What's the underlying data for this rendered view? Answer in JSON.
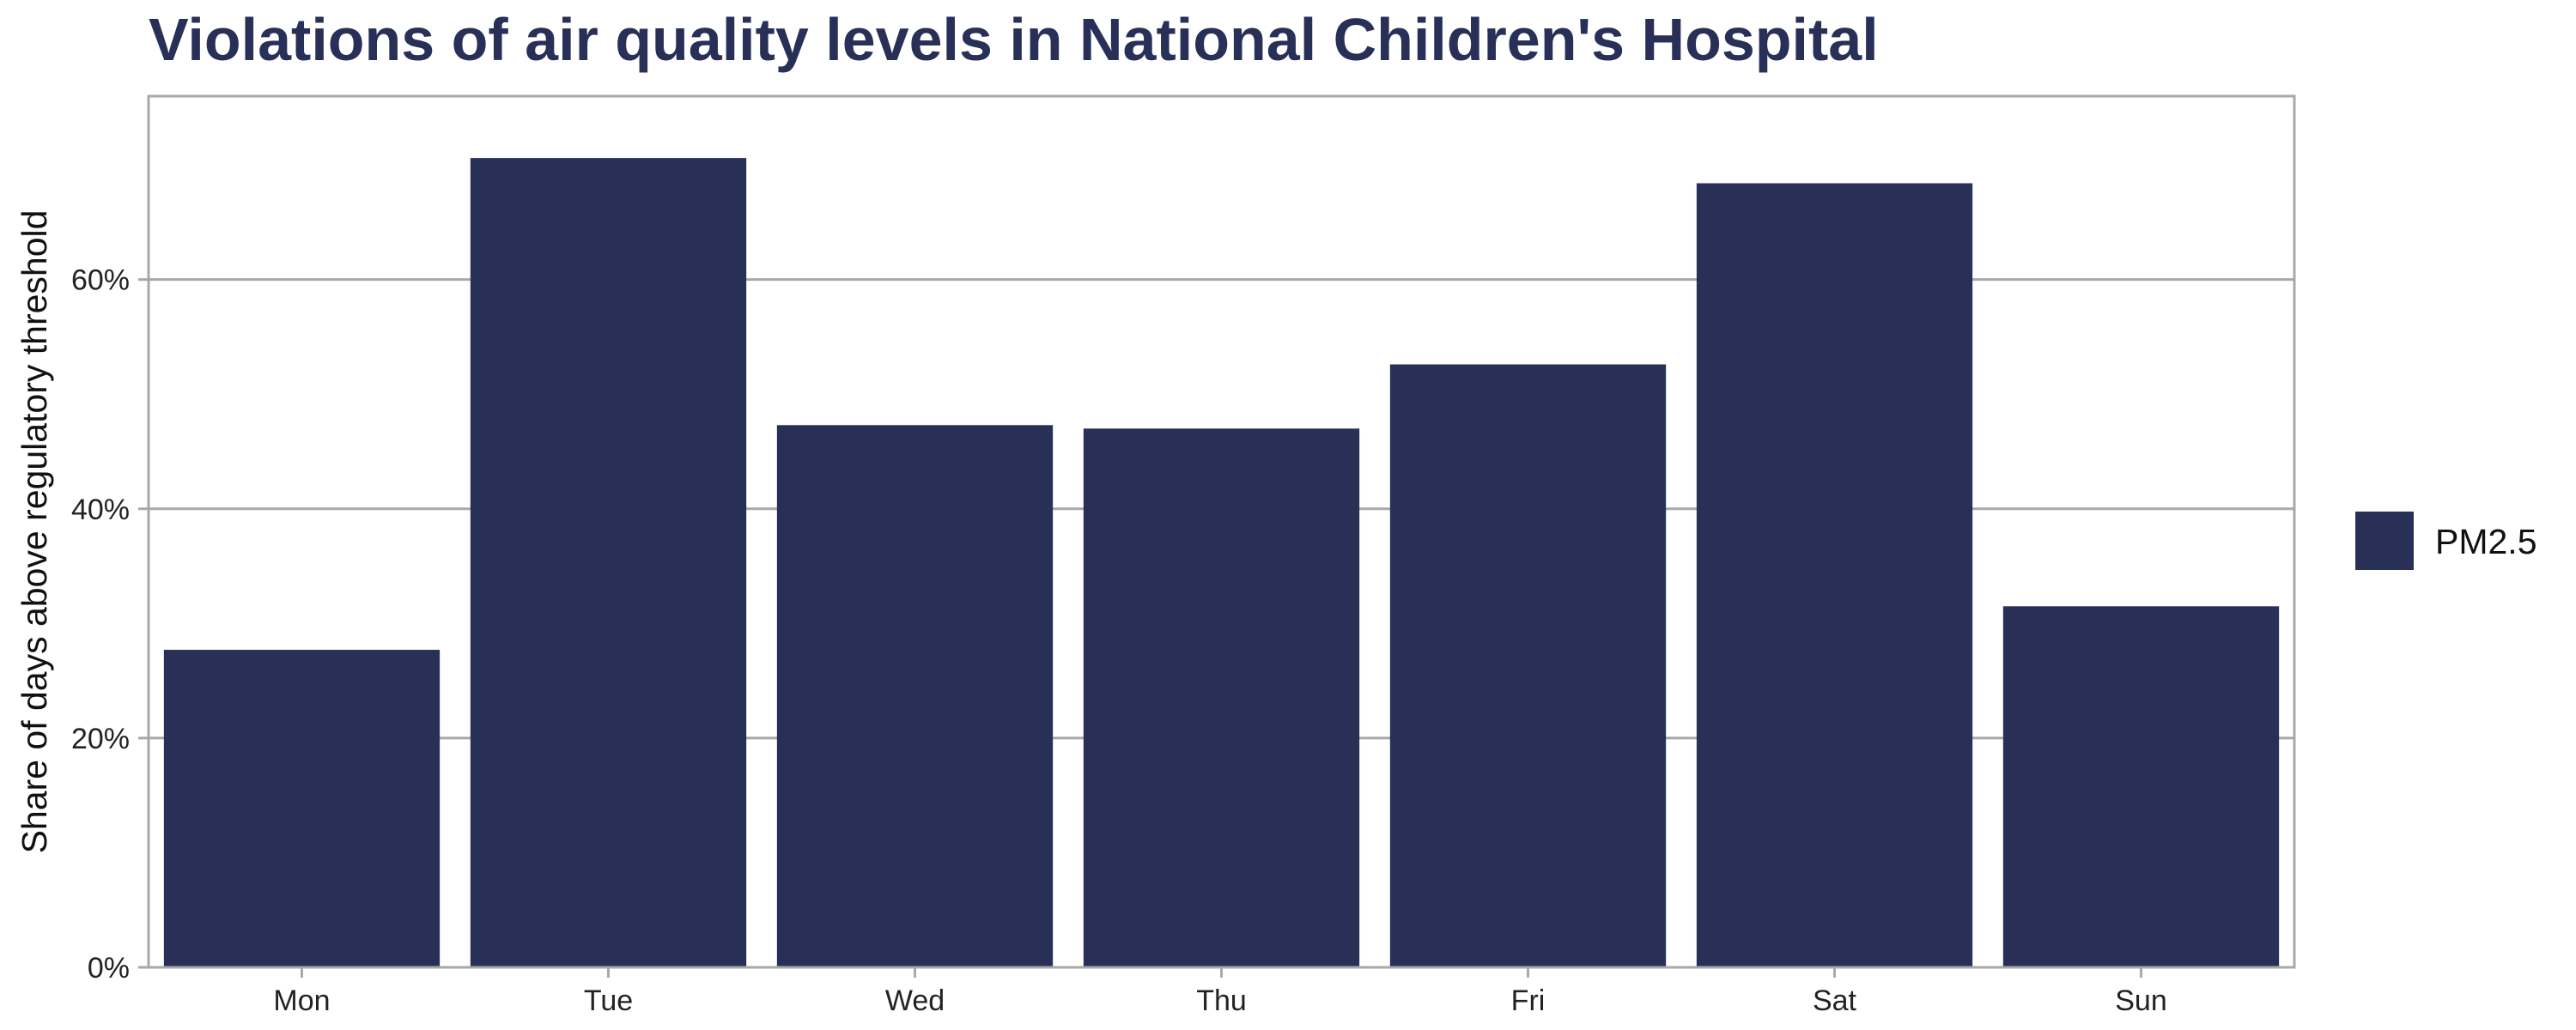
{
  "chart_data": {
    "type": "bar",
    "title": "Violations of air quality levels in National Children's Hospital",
    "xlabel": "",
    "ylabel": "Share of days above regulatory threshold",
    "categories": [
      "Mon",
      "Tue",
      "Wed",
      "Thu",
      "Fri",
      "Sat",
      "Sun"
    ],
    "series": [
      {
        "name": "PM2.5",
        "values": [
          27.7,
          70.6,
          47.3,
          47.0,
          52.6,
          68.4,
          31.5
        ],
        "color": "#283058"
      }
    ],
    "ylim": [
      0,
      76
    ],
    "yticks": [
      0,
      20,
      40,
      60
    ],
    "ytick_labels": [
      "0%",
      "20%",
      "40%",
      "60%"
    ],
    "grid": true,
    "legend_position": "right",
    "colors": {
      "title": "#283058",
      "bar": "#283058",
      "grid": "#a8a8a8",
      "panel_border": "#a8a8a8"
    }
  }
}
